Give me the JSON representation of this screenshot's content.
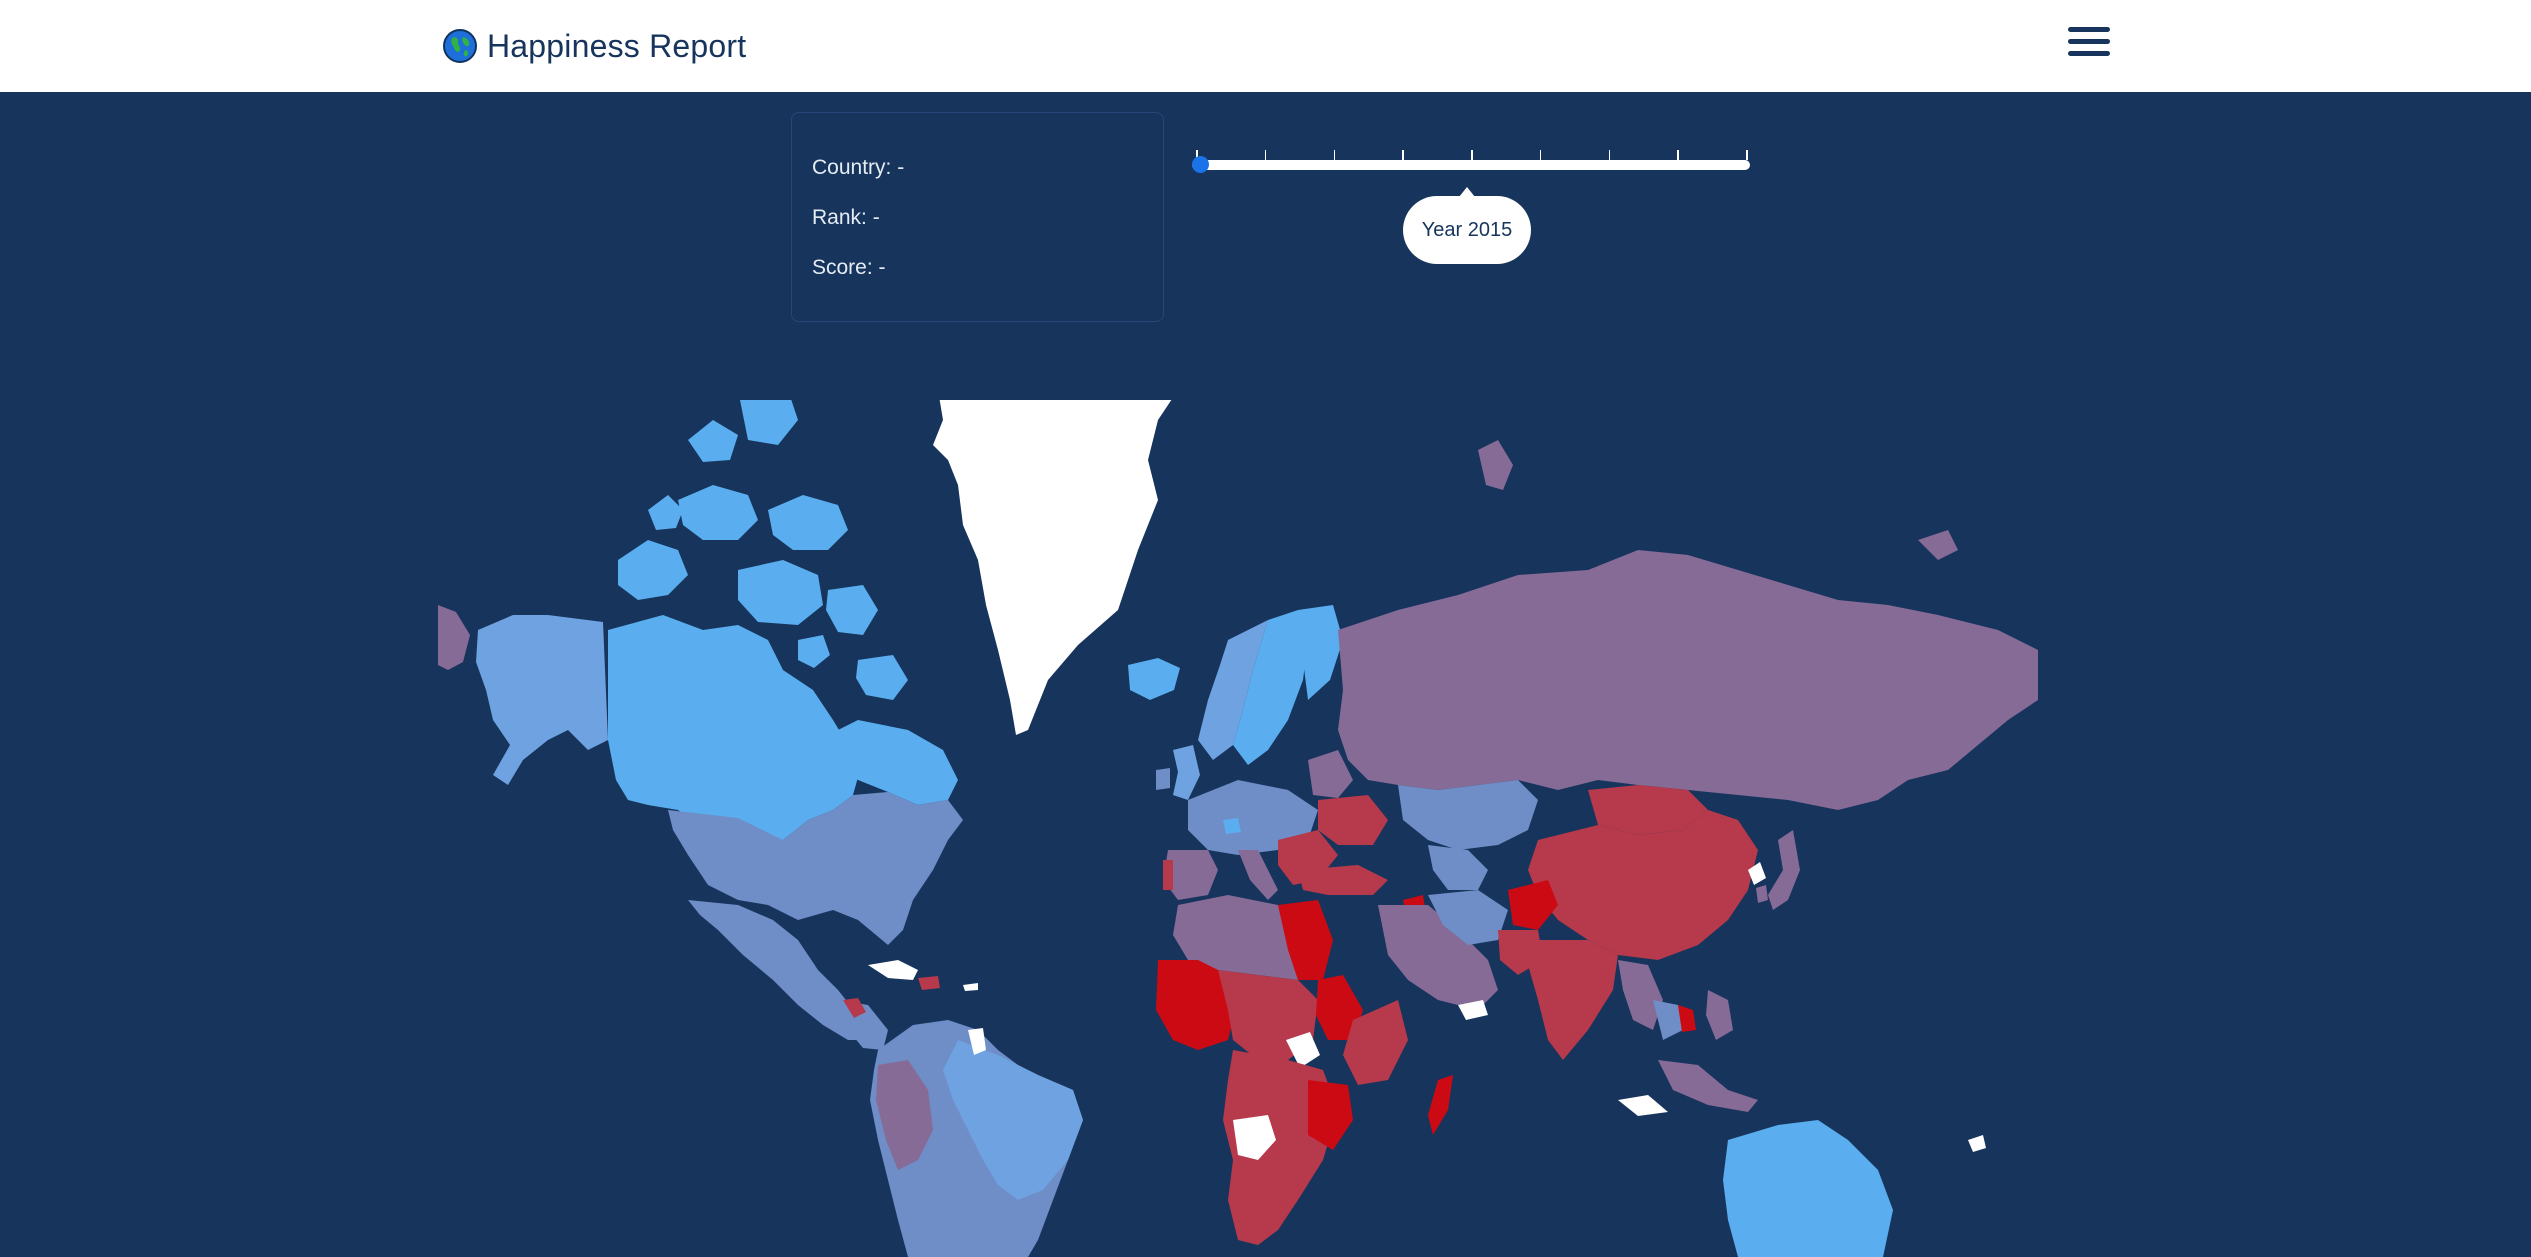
{
  "app": {
    "title": "Happiness Report"
  },
  "header": {
    "menu_icon": "hamburger-menu-icon",
    "logo_icon": "globe-icon"
  },
  "info_panel": {
    "country": "Country: -",
    "rank": "Rank: -",
    "score": "Score: -"
  },
  "year_slider": {
    "tooltip": "Year 2015",
    "value_fraction": 0.0,
    "tick_count": 9
  },
  "colors": {
    "background": "#16345c",
    "header_bg": "#ffffff",
    "accent": "#1a73e8",
    "happy_high": "#5aaef0",
    "happy_mid": "#6f8dc6",
    "neutral": "#866b96",
    "unhappy": "#b63a4c",
    "least_happy": "#cc0a14",
    "no_data": "#ffffff"
  }
}
